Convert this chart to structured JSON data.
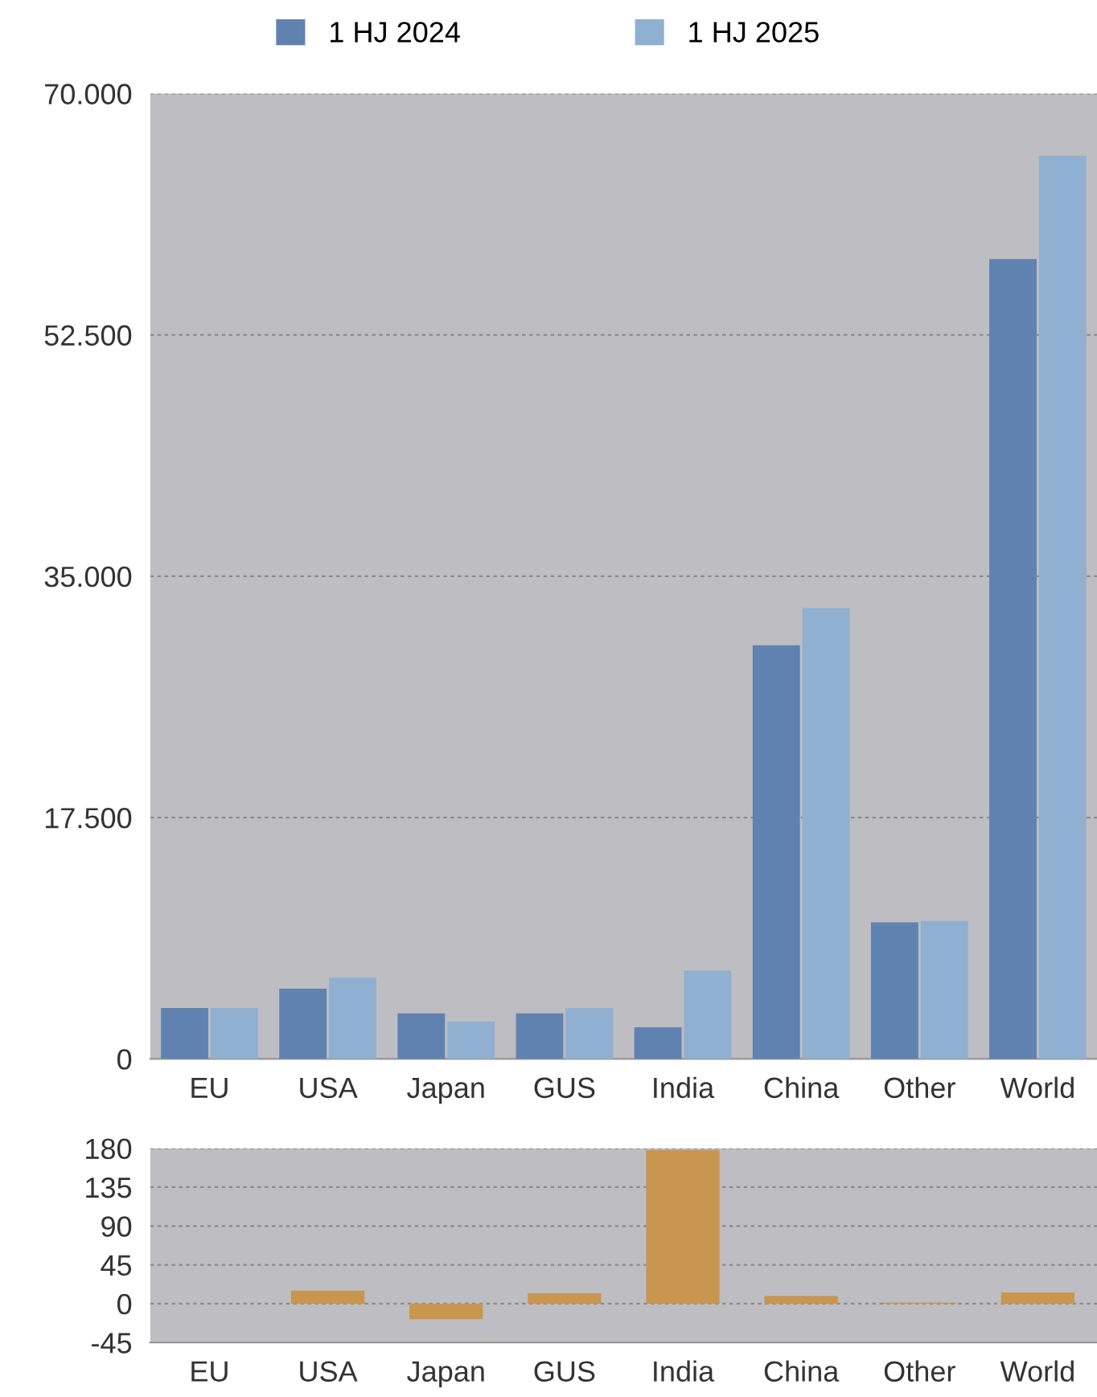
{
  "chart_data": [
    {
      "type": "bar",
      "categories": [
        "EU",
        "USA",
        "Japan",
        "GUS",
        "India",
        "China",
        "Other",
        "World"
      ],
      "series": [
        {
          "name": "1 HJ 2024",
          "color": "#6082b0",
          "values": [
            3700,
            5100,
            3300,
            3300,
            2300,
            30000,
            9900,
            58000
          ]
        },
        {
          "name": "1 HJ 2025",
          "color": "#8fb0d0",
          "values": [
            3700,
            5900,
            2700,
            3700,
            6400,
            32700,
            10000,
            65500
          ]
        }
      ],
      "ylim": [
        0,
        70000
      ],
      "yticks": [
        0,
        {
          "value": 17500,
          "label": "17.500"
        },
        {
          "value": 35000,
          "label": "35.000"
        },
        {
          "value": 52500,
          "label": "52.500"
        },
        {
          "value": 70000,
          "label": "70.000"
        }
      ],
      "grid": "y",
      "legend": "top"
    },
    {
      "type": "bar",
      "categories": [
        "EU",
        "USA",
        "Japan",
        "GUS",
        "India",
        "China",
        "Other",
        "World"
      ],
      "series": [
        {
          "color": "#c8964e",
          "values": [
            0,
            15,
            -18,
            12,
            178,
            9,
            1,
            13
          ]
        }
      ],
      "ylim": [
        -45,
        180
      ],
      "yticks": [
        -45,
        0,
        45,
        90,
        135,
        180
      ],
      "grid": "y"
    }
  ]
}
